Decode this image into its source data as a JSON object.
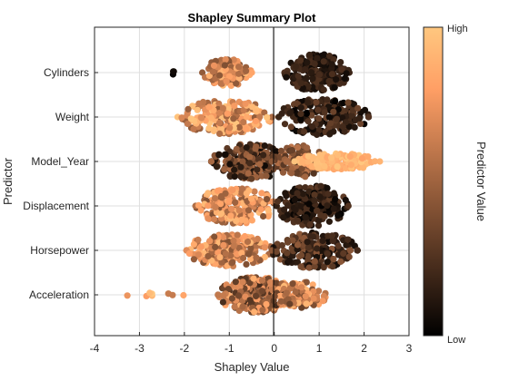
{
  "chart_data": {
    "type": "scatter",
    "title": "Shapley Summary Plot",
    "xlabel": "Shapley Value",
    "ylabel": "Predictor",
    "xlim": [
      -4,
      3
    ],
    "xticks": [
      -4,
      -3,
      -2,
      -1,
      0,
      1,
      2,
      3
    ],
    "grid": true,
    "predictors": [
      {
        "name": "Cylinders",
        "clusters": [
          {
            "center": -1.05,
            "spread": 0.55,
            "height": 0.3,
            "count": 170,
            "cmin": 0.4,
            "cmax": 0.95
          },
          {
            "center": 0.95,
            "spread": 0.72,
            "height": 0.42,
            "count": 230,
            "cmin": 0.05,
            "cmax": 0.25
          },
          {
            "center": -2.25,
            "spread": 0.08,
            "height": 0.05,
            "count": 3,
            "cmin": 0.0,
            "cmax": 0.06
          }
        ]
      },
      {
        "name": "Weight",
        "clusters": [
          {
            "center": -1.1,
            "spread": 1.05,
            "height": 0.38,
            "count": 210,
            "cmin": 0.45,
            "cmax": 1.0
          },
          {
            "center": 1.1,
            "spread": 1.0,
            "height": 0.42,
            "count": 210,
            "cmin": 0.0,
            "cmax": 0.35
          }
        ]
      },
      {
        "name": "Model_Year",
        "clusters": [
          {
            "center": -0.55,
            "spread": 0.85,
            "height": 0.4,
            "count": 200,
            "cmin": 0.05,
            "cmax": 0.55
          },
          {
            "center": 0.55,
            "spread": 0.6,
            "height": 0.36,
            "count": 110,
            "cmin": 0.25,
            "cmax": 0.6
          },
          {
            "center": 1.4,
            "spread": 0.95,
            "height": 0.18,
            "count": 140,
            "cmin": 0.8,
            "cmax": 1.0
          }
        ]
      },
      {
        "name": "Displacement",
        "clusters": [
          {
            "center": -0.85,
            "spread": 0.9,
            "height": 0.4,
            "count": 200,
            "cmin": 0.4,
            "cmax": 0.95
          },
          {
            "center": 0.85,
            "spread": 0.8,
            "height": 0.46,
            "count": 220,
            "cmin": 0.0,
            "cmax": 0.3
          }
        ]
      },
      {
        "name": "Horsepower",
        "clusters": [
          {
            "center": -1.0,
            "spread": 0.95,
            "height": 0.36,
            "count": 200,
            "cmin": 0.4,
            "cmax": 0.95
          },
          {
            "center": 0.9,
            "spread": 0.95,
            "height": 0.4,
            "count": 210,
            "cmin": 0.05,
            "cmax": 0.45
          }
        ]
      },
      {
        "name": "Acceleration",
        "clusters": [
          {
            "center": -0.4,
            "spread": 0.85,
            "height": 0.4,
            "count": 280,
            "cmin": 0.2,
            "cmax": 0.9
          },
          {
            "center": 0.6,
            "spread": 0.6,
            "height": 0.3,
            "count": 120,
            "cmin": 0.3,
            "cmax": 0.95
          },
          {
            "center": -2.6,
            "spread": 0.8,
            "height": 0.05,
            "count": 9,
            "cmin": 0.6,
            "cmax": 1.0
          }
        ]
      }
    ],
    "colorbar": {
      "title": "Predictor Value",
      "high_label": "High",
      "low_label": "Low",
      "colormap": "copper",
      "low_color": "#000000",
      "high_color": "#ffc77f"
    }
  }
}
